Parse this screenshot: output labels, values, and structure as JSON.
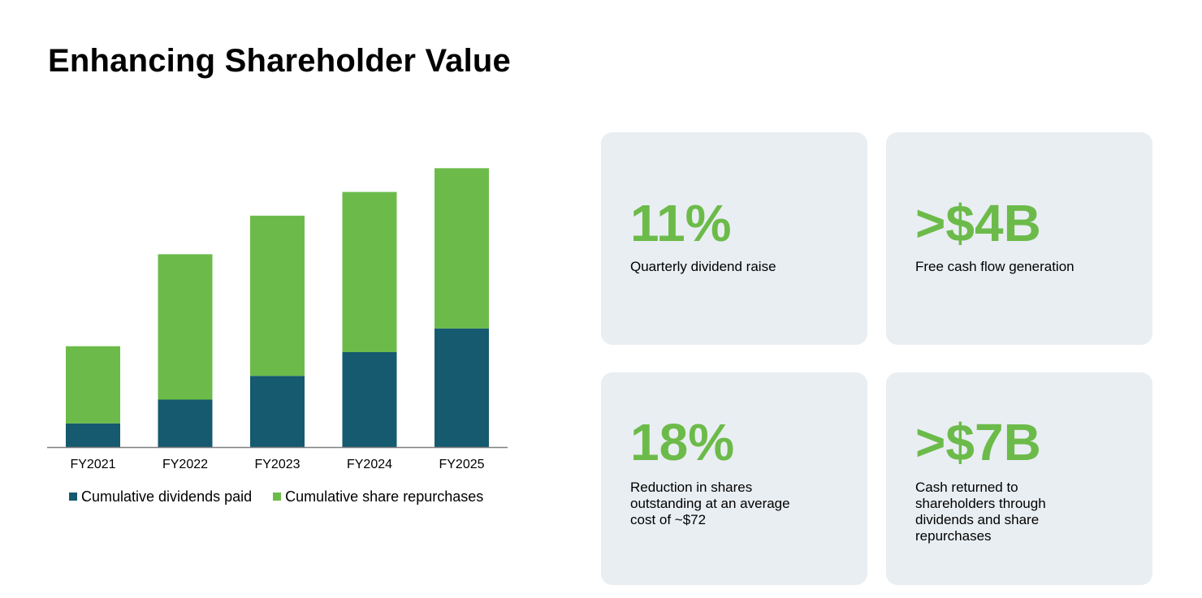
{
  "title": "Enhancing Shareholder Value",
  "colors": {
    "dividends": "#155a6e",
    "repurchases": "#6cbb4a",
    "card_bg": "#e9eef2",
    "axis": "#7f7f7f"
  },
  "chart_data": {
    "type": "bar",
    "stacked": true,
    "categories": [
      "FY2021",
      "FY2022",
      "FY2023",
      "FY2024",
      "FY2025"
    ],
    "series": [
      {
        "name": "Cumulative dividends paid",
        "values": [
          0.8,
          1.6,
          2.4,
          3.2,
          4.0
        ]
      },
      {
        "name": "Cumulative share repurchases",
        "values": [
          2.6,
          4.9,
          5.4,
          5.4,
          5.4
        ]
      }
    ],
    "ylim": [
      0,
      9.6
    ],
    "grid": false,
    "legend_position": "bottom-left",
    "title": "",
    "xlabel": "",
    "ylabel": ""
  },
  "cards": [
    {
      "value": "11%",
      "description": "Quarterly dividend raise"
    },
    {
      "value": ">$4B",
      "description": "Free cash flow generation"
    },
    {
      "value": "18%",
      "description": "Reduction in shares outstanding at an average cost of ~$72"
    },
    {
      "value": ">$7B",
      "description": "Cash returned to shareholders through dividends and share repurchases"
    }
  ]
}
